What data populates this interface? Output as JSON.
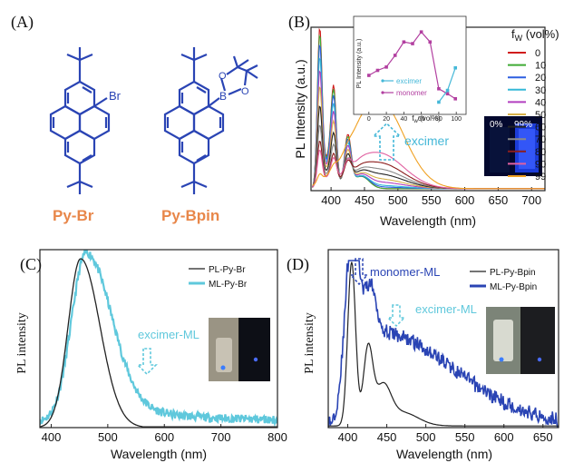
{
  "panel_labels": {
    "a": "(A)",
    "b": "(B)",
    "c": "(C)",
    "d": "(D)"
  },
  "molecules": {
    "left_label": "Py-Br",
    "right_label": "Py-Bpin",
    "br_atom": "Br",
    "b_atom": "B",
    "o_atom": "O",
    "label_color": "#e8874a",
    "structure_color": "#2a44b4"
  },
  "chart_data": [
    {
      "panel": "B",
      "type": "line",
      "xlabel": "Wavelength (nm)",
      "ylabel": "PL Intensity (a.u.)",
      "xlim": [
        370,
        720
      ],
      "xticks": [
        400,
        450,
        500,
        550,
        600,
        650,
        700
      ],
      "legend_title": "fW (vol%)",
      "legend_title_main": "f",
      "legend_title_sub": "W",
      "legend_title_rest": " (vol%)",
      "fractions": [
        "0",
        "10",
        "20",
        "30",
        "40",
        "50",
        "60",
        "70",
        "80",
        "90",
        "99"
      ],
      "series_colors": [
        "#d01c1c",
        "#3faa34",
        "#2d5fe0",
        "#35b8d8",
        "#b23fbf",
        "#d8b24a",
        "#232323",
        "#8a8a8a",
        "#8c1d1d",
        "#e060a0",
        "#f0a020"
      ],
      "monomer_peak_nm": [
        383,
        404,
        425
      ],
      "excimer_peak_nm": 470,
      "annotation": "excimer",
      "photo_labels": [
        "0%",
        "99%"
      ],
      "inset": {
        "xlabel_main": "f",
        "xlabel_sub": "w",
        "xlabel_rest": " (vol%)",
        "ylabel": "PL Intensity (a.u.)",
        "xticks": [
          0,
          20,
          40,
          60,
          80,
          100
        ],
        "xlim": [
          -5,
          105
        ],
        "ylim": [
          0,
          1
        ],
        "monomer_x": [
          0,
          10,
          20,
          30,
          40,
          50,
          60,
          70,
          80,
          90,
          99
        ],
        "monomer_y": [
          0.38,
          0.44,
          0.48,
          0.62,
          0.78,
          0.76,
          0.9,
          0.78,
          0.22,
          0.16,
          0.1
        ],
        "excimer_x": [
          80,
          90,
          99
        ],
        "excimer_y": [
          0.06,
          0.2,
          0.47
        ],
        "legend": [
          "excimer",
          "monomer"
        ]
      }
    },
    {
      "panel": "C",
      "type": "line",
      "xlabel": "Wavelength (nm)",
      "ylabel": "PL intensity",
      "xlim": [
        380,
        800
      ],
      "xticks": [
        400,
        500,
        600,
        700,
        800
      ],
      "series": [
        {
          "name": "PL-Py-Br",
          "color": "#222222",
          "peak_nm": 452
        },
        {
          "name": "ML-Py-Br",
          "color": "#5fc8dc",
          "peak_nm": 462
        }
      ],
      "annotation": "excimer-ML"
    },
    {
      "panel": "D",
      "type": "line",
      "xlabel": "Wavelength (nm)",
      "ylabel": "PL intensity",
      "xlim": [
        375,
        670
      ],
      "xticks": [
        400,
        450,
        500,
        550,
        600,
        650
      ],
      "series": [
        {
          "name": "PL-Py-Bpin",
          "color": "#222222",
          "peak_nm": 405
        },
        {
          "name": "ML-Py-Bpin",
          "color": "#2a44b4",
          "peak_nm": 407
        }
      ],
      "annotations": [
        "monomer-ML",
        "excimer-ML"
      ]
    }
  ]
}
